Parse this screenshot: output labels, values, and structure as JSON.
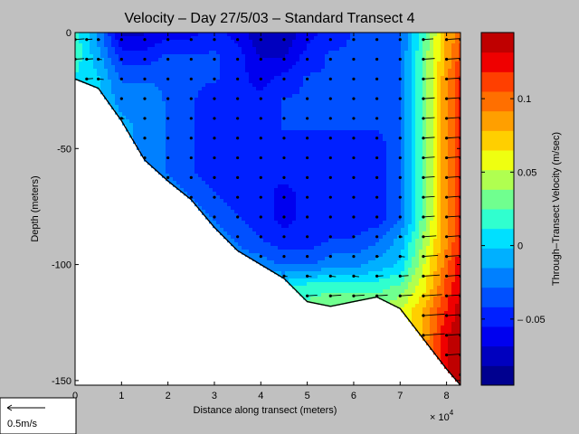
{
  "chart_data": {
    "type": "heatmap",
    "title": "Velocity – Day 27/5/03 – Standard Transect 4",
    "xlabel": "Distance along transect (meters)",
    "ylabel": "Depth (meters)",
    "x_exponent_label": "× 10",
    "x_exponent_power": "4",
    "xlim": [
      0,
      83000
    ],
    "ylim": [
      -152,
      0
    ],
    "x_ticks": [
      0,
      1,
      2,
      3,
      4,
      5,
      6,
      7,
      8
    ],
    "x_tick_labels": [
      "0",
      "1",
      "2",
      "3",
      "4",
      "5",
      "6",
      "7",
      "8"
    ],
    "y_ticks": [
      0,
      -50,
      -100,
      -150
    ],
    "y_tick_labels": [
      "0",
      "-50",
      "-100",
      "-150"
    ],
    "colorbar": {
      "label": "Through–Transect Velocity (m/sec)",
      "range": [
        -0.095,
        0.145
      ],
      "ticks": [
        0.1,
        0.05,
        0,
        -0.05
      ],
      "tick_labels": [
        "0.1",
        "0.05",
        "0",
        "– 0.05"
      ],
      "colors": [
        "#00008f",
        "#0000bf",
        "#0000ef",
        "#0020ff",
        "#0050ff",
        "#0080ff",
        "#00b0ff",
        "#00e0ff",
        "#30ffcf",
        "#70ff8f",
        "#b0ff50",
        "#efff10",
        "#ffcf00",
        "#ff9f00",
        "#ff6f00",
        "#ff3f00",
        "#ef0000",
        "#bf0000"
      ]
    },
    "bottom_profile": {
      "x": [
        0,
        5000,
        10000,
        15000,
        20000,
        25000,
        30000,
        35000,
        40000,
        45000,
        50000,
        55000,
        60000,
        65000,
        70000,
        75000,
        80000,
        83000
      ],
      "depth": [
        -20,
        -24,
        -38,
        -55,
        -64,
        -72,
        -84,
        -94,
        -100,
        -106,
        -116,
        -118,
        -116,
        -114,
        -119,
        -132,
        -145,
        -152
      ]
    },
    "velocity_field": {
      "x": [
        0,
        5000,
        10000,
        15000,
        20000,
        25000,
        30000,
        35000,
        40000,
        45000,
        50000,
        55000,
        60000,
        65000,
        70000,
        75000,
        80000,
        83000
      ],
      "depth": [
        0,
        -10,
        -20,
        -30,
        -40,
        -50,
        -60,
        -70,
        -80,
        -90,
        -100,
        -110,
        -120,
        -130,
        -140,
        -150
      ],
      "values": [
        [
          0.02,
          -0.02,
          -0.07,
          -0.07,
          -0.06,
          -0.06,
          -0.05,
          -0.06,
          -0.08,
          -0.08,
          -0.06,
          -0.05,
          -0.04,
          -0.04,
          -0.03,
          0.02,
          0.08,
          0.1
        ],
        [
          0.02,
          -0.01,
          -0.05,
          -0.05,
          -0.04,
          -0.04,
          -0.04,
          -0.05,
          -0.07,
          -0.07,
          -0.05,
          -0.04,
          -0.04,
          -0.04,
          -0.03,
          0.03,
          0.08,
          0.11
        ],
        [
          0.01,
          0.0,
          -0.03,
          -0.03,
          -0.03,
          -0.04,
          -0.04,
          -0.05,
          -0.06,
          -0.05,
          -0.04,
          -0.04,
          -0.04,
          -0.04,
          -0.03,
          0.03,
          0.09,
          0.12
        ],
        [
          0.01,
          0.0,
          -0.02,
          -0.02,
          -0.03,
          -0.04,
          -0.05,
          -0.05,
          -0.05,
          -0.04,
          -0.04,
          -0.03,
          -0.03,
          -0.03,
          -0.03,
          0.03,
          0.09,
          0.12
        ],
        [
          0.01,
          0.0,
          -0.01,
          -0.02,
          -0.03,
          -0.04,
          -0.05,
          -0.05,
          -0.05,
          -0.04,
          -0.04,
          -0.04,
          -0.04,
          -0.04,
          -0.03,
          0.03,
          0.09,
          0.12
        ],
        [
          0.01,
          0.0,
          -0.01,
          -0.02,
          -0.03,
          -0.04,
          -0.05,
          -0.05,
          -0.05,
          -0.05,
          -0.05,
          -0.05,
          -0.05,
          -0.05,
          -0.03,
          0.03,
          0.09,
          0.12
        ],
        [
          0.01,
          0.0,
          -0.01,
          -0.02,
          -0.03,
          -0.04,
          -0.05,
          -0.05,
          -0.05,
          -0.05,
          -0.05,
          -0.05,
          -0.05,
          -0.05,
          -0.03,
          0.03,
          0.09,
          0.12
        ],
        [
          0.01,
          0.0,
          -0.01,
          -0.02,
          -0.02,
          -0.03,
          -0.04,
          -0.05,
          -0.05,
          -0.06,
          -0.05,
          -0.05,
          -0.05,
          -0.05,
          -0.03,
          0.03,
          0.09,
          0.12
        ],
        [
          0.01,
          0.0,
          -0.01,
          -0.01,
          -0.02,
          -0.02,
          -0.03,
          -0.04,
          -0.05,
          -0.06,
          -0.05,
          -0.05,
          -0.05,
          -0.05,
          -0.03,
          0.03,
          0.09,
          0.12
        ],
        [
          0.01,
          0.0,
          -0.01,
          -0.01,
          -0.01,
          -0.02,
          -0.02,
          -0.03,
          -0.04,
          -0.05,
          -0.05,
          -0.04,
          -0.04,
          -0.03,
          -0.01,
          0.04,
          0.09,
          0.12
        ],
        [
          0.01,
          0.0,
          -0.01,
          -0.01,
          -0.01,
          -0.02,
          -0.01,
          -0.02,
          -0.02,
          -0.03,
          -0.03,
          -0.02,
          -0.02,
          -0.01,
          0.0,
          0.05,
          0.1,
          0.13
        ],
        [
          0.01,
          0.0,
          -0.01,
          -0.01,
          -0.01,
          -0.02,
          -0.01,
          0.0,
          0.0,
          0.01,
          0.02,
          0.02,
          0.02,
          0.02,
          0.03,
          0.06,
          0.11,
          0.13
        ],
        [
          0.01,
          0.0,
          -0.01,
          -0.01,
          -0.01,
          -0.02,
          -0.01,
          0.0,
          0.01,
          0.02,
          0.03,
          0.04,
          0.04,
          0.04,
          0.05,
          0.08,
          0.12,
          0.14
        ],
        [
          0.01,
          0.0,
          -0.01,
          -0.01,
          -0.01,
          -0.02,
          -0.01,
          0.0,
          0.01,
          0.02,
          0.03,
          0.04,
          0.04,
          0.04,
          0.05,
          0.08,
          0.13,
          0.14
        ],
        [
          0.01,
          0.0,
          -0.01,
          -0.01,
          -0.01,
          -0.02,
          -0.01,
          0.0,
          0.01,
          0.02,
          0.03,
          0.04,
          0.04,
          0.04,
          0.05,
          0.09,
          0.13,
          0.14
        ],
        [
          0.01,
          0.0,
          -0.01,
          -0.01,
          -0.01,
          -0.02,
          -0.01,
          0.0,
          0.01,
          0.02,
          0.03,
          0.04,
          0.04,
          0.04,
          0.05,
          0.09,
          0.13,
          0.14
        ]
      ]
    },
    "vectors": {
      "columns_x": [
        0,
        2500,
        5000,
        10000,
        15000,
        20000,
        25000,
        30000,
        35000,
        40000,
        45000,
        50000,
        55000,
        60000,
        65000,
        70000,
        75000,
        80000,
        83000
      ],
      "depth_step": 8.5
    },
    "scale_legend": {
      "label": "0.5m/s",
      "speed": 0.5
    }
  }
}
